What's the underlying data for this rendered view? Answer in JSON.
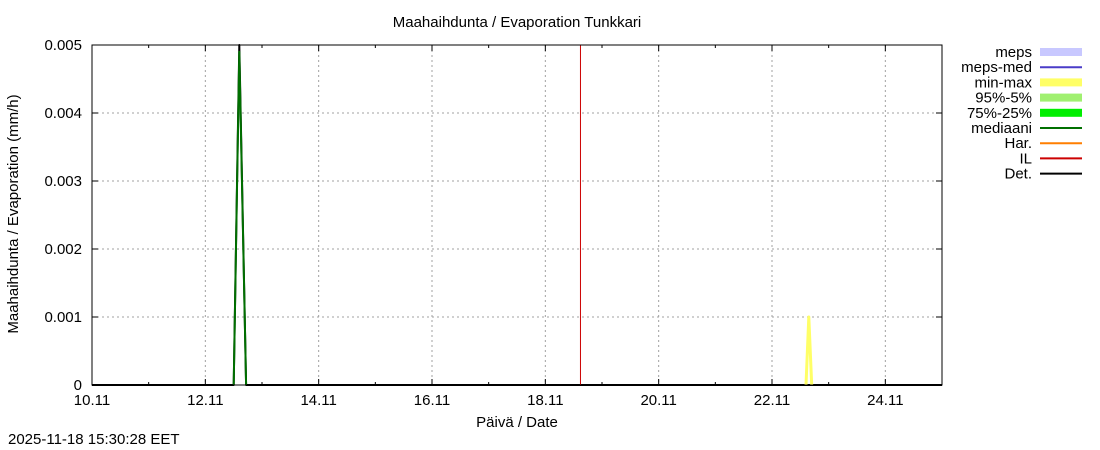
{
  "chart_data": {
    "type": "line",
    "title": "Maahaihdunta / Evaporation  Tunkkari",
    "xlabel": "Päivä / Date",
    "ylabel": "Maahaihdunta / Evaporation (mm/h)",
    "ylim": [
      0,
      0.005
    ],
    "yticks": [
      "0",
      "0.001",
      "0.002",
      "0.003",
      "0.004",
      "0.005"
    ],
    "xlim_days": [
      10,
      25
    ],
    "xticks": [
      "10.11",
      "12.11",
      "14.11",
      "16.11",
      "18.11",
      "20.11",
      "22.11",
      "24.11"
    ],
    "grid": true,
    "legend_position": "right-outside",
    "legend": [
      {
        "name": "meps",
        "color": "#c8c8ff",
        "style": "band"
      },
      {
        "name": "meps-med",
        "color": "#4a3cc8",
        "style": "line"
      },
      {
        "name": "min-max",
        "color": "#ffff66",
        "style": "band"
      },
      {
        "name": "95%-5%",
        "color": "#a0f070",
        "style": "band"
      },
      {
        "name": "75%-25%",
        "color": "#00ee00",
        "style": "band"
      },
      {
        "name": "mediaani",
        "color": "#007000",
        "style": "line"
      },
      {
        "name": "Har.",
        "color": "#ff7f00",
        "style": "line"
      },
      {
        "name": "IL",
        "color": "#cc0000",
        "style": "line"
      },
      {
        "name": "Det.",
        "color": "#000000",
        "style": "line"
      }
    ],
    "series": [
      {
        "name": "Det.",
        "color": "#000000",
        "x": [
          10.0,
          12.5,
          12.6,
          12.72,
          25.0
        ],
        "y": [
          0,
          0,
          0.005,
          0,
          0
        ]
      },
      {
        "name": "mediaani",
        "color": "#007000",
        "x": [
          12.5,
          12.6,
          12.72
        ],
        "y": [
          0,
          0.0049,
          0
        ]
      },
      {
        "name": "min-max",
        "color": "#ffff66",
        "x": [
          22.6,
          22.65,
          22.7
        ],
        "y": [
          0,
          0.001,
          0
        ]
      },
      {
        "name": "IL",
        "color": "#cc0000",
        "type": "vline",
        "x": 18.62
      }
    ]
  },
  "timestamp": "2025-11-18 15:30:28 EET"
}
